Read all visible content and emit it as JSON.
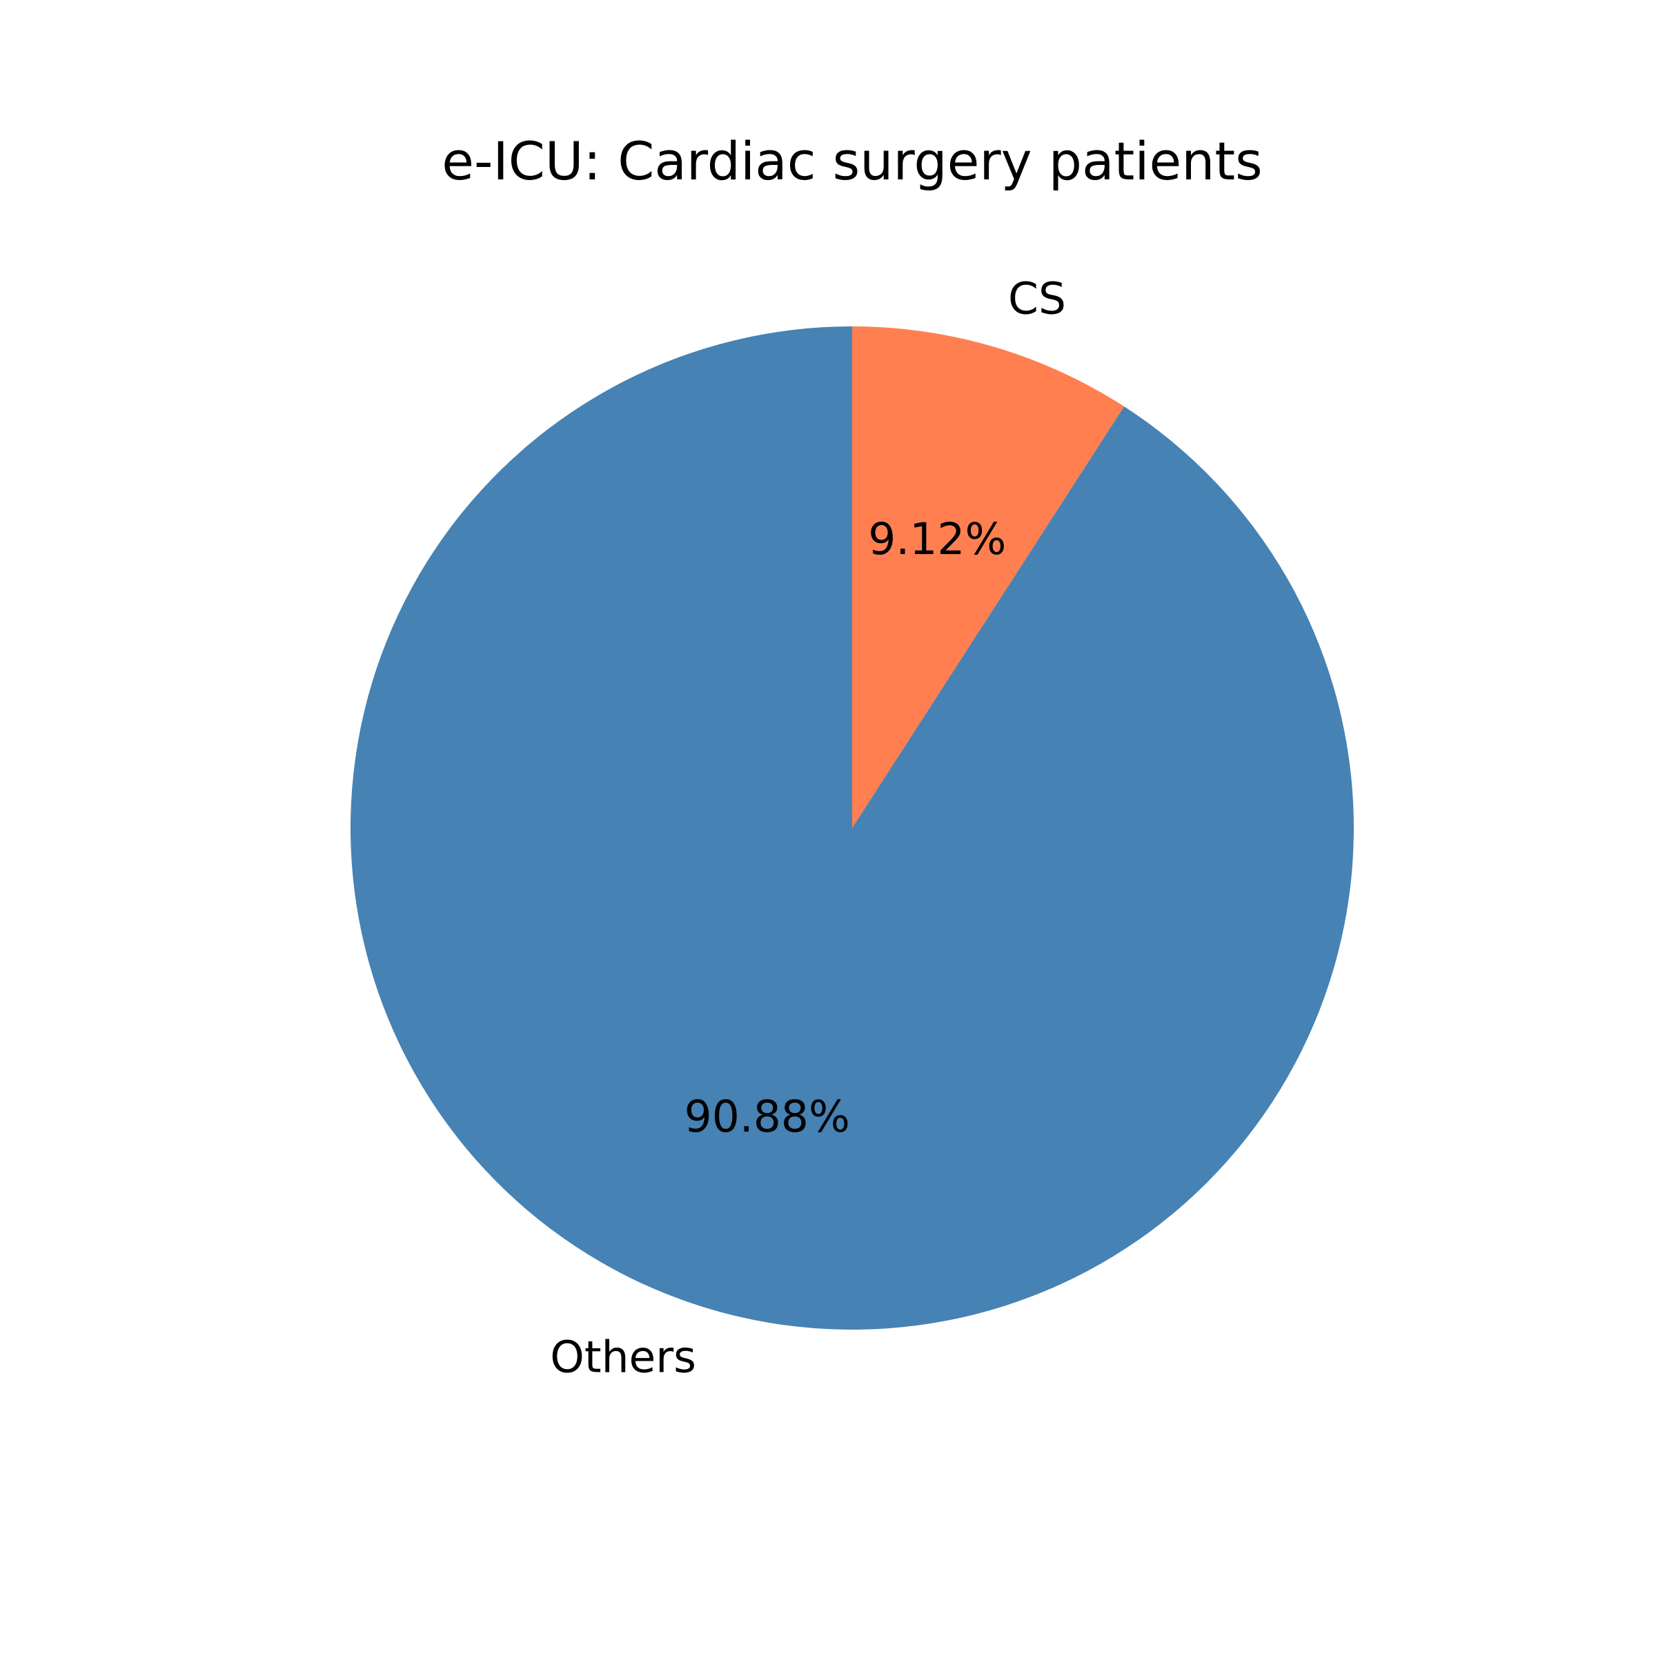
{
  "chart_data": {
    "type": "pie",
    "title": "e-ICU: Cardiac surgery patients",
    "slices": [
      {
        "label": "CS",
        "value": 9.12,
        "pct_label": "9.12%",
        "color": "#FF7F50"
      },
      {
        "label": "Others",
        "value": 90.88,
        "pct_label": "90.88%",
        "color": "#4682B4"
      }
    ],
    "start_angle_deg": 90,
    "direction": "clockwise",
    "legend": "none"
  }
}
